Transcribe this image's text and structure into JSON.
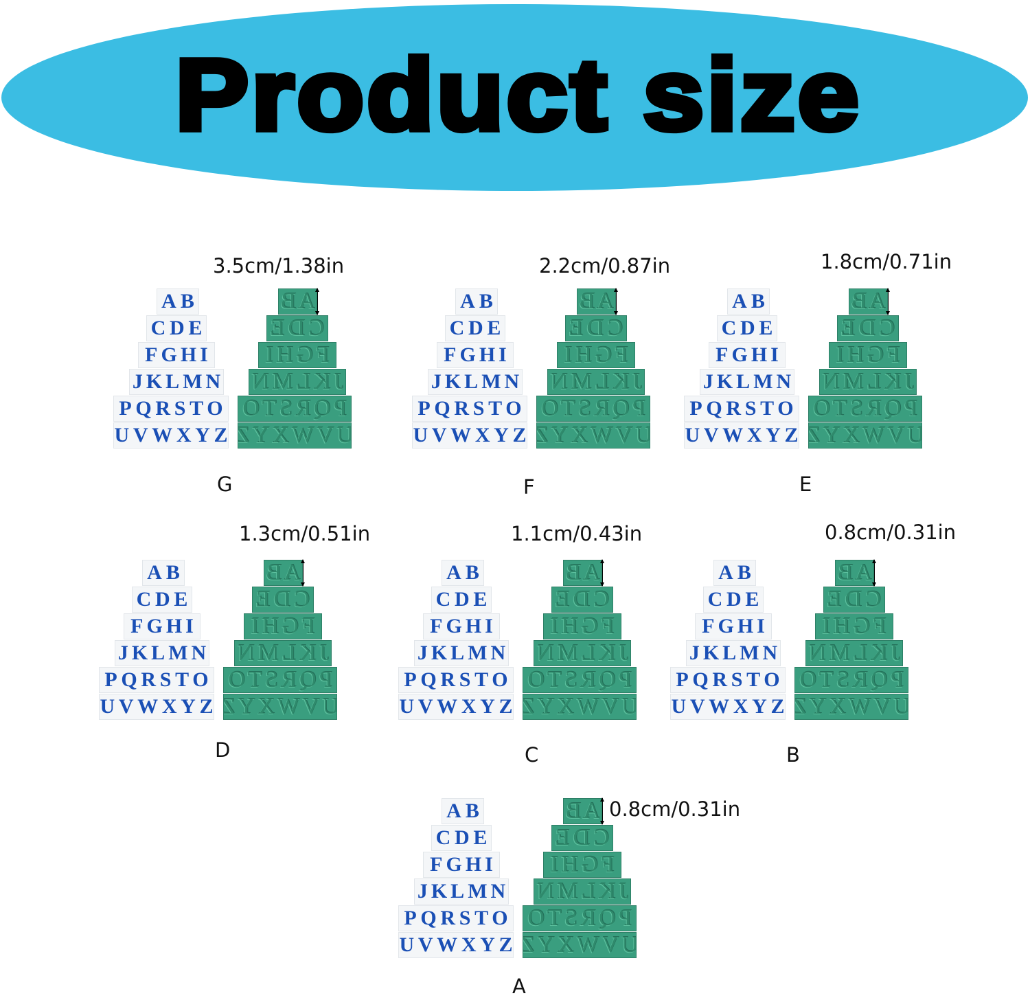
{
  "title": "Product size",
  "colors": {
    "banner": "#3bbde3",
    "letters_blue": "#1a4fb5",
    "stamp_green": "#3a9e7f"
  },
  "rows": [
    "AB",
    "CDE",
    "FGHI",
    "JKLMN",
    "PQRSTO",
    "UVWXYZ"
  ],
  "sets": [
    {
      "label": "G",
      "size": "3.5cm/1.38in"
    },
    {
      "label": "F",
      "size": "2.2cm/0.87in"
    },
    {
      "label": "E",
      "size": "1.8cm/0.71in"
    },
    {
      "label": "D",
      "size": "1.3cm/0.51in"
    },
    {
      "label": "C",
      "size": "1.1cm/0.43in"
    },
    {
      "label": "B",
      "size": "0.8cm/0.31in"
    },
    {
      "label": "A",
      "size": "0.8cm/0.31in"
    }
  ]
}
